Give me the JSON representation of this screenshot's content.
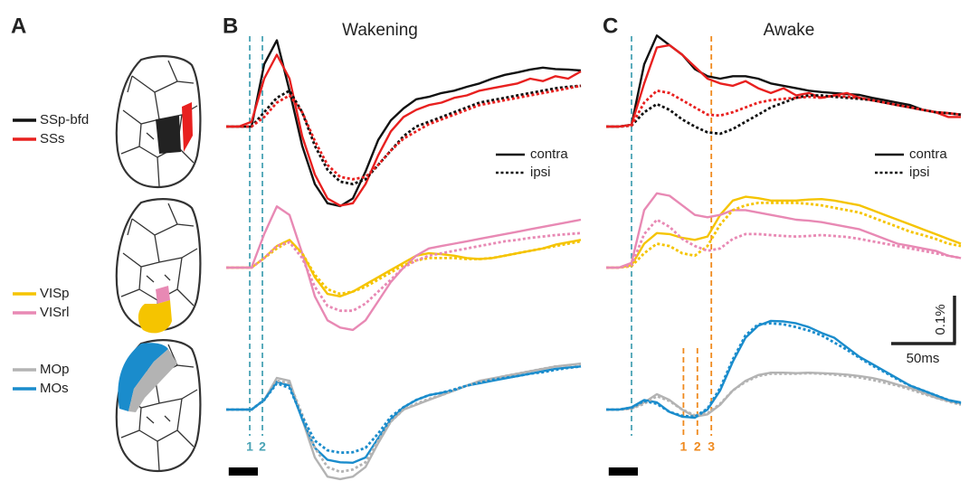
{
  "panel_labels": [
    "A",
    "B",
    "C"
  ],
  "chart_data": [
    {
      "type": "line",
      "title": "Wakening",
      "line_styles": [
        "contra",
        "ipsi"
      ],
      "x": [
        0,
        10,
        20,
        30,
        40,
        50,
        60,
        70,
        80,
        90,
        100,
        110,
        120,
        130,
        140,
        150,
        160,
        170,
        180,
        190,
        200,
        210,
        220,
        230,
        240,
        250,
        260,
        270,
        280
      ],
      "stimulus": [
        2,
        25
      ],
      "markers": [
        {
          "value": 18.6,
          "label": "1",
          "color": "#4aa3b5"
        },
        {
          "value": 28.6,
          "label": "2",
          "color": "#4aa3b5"
        }
      ],
      "series": [
        {
          "name": "SSp-bfd",
          "color": "#111111",
          "line": "contra",
          "values": [
            0,
            0,
            0,
            0.13,
            0.18,
            0.075,
            -0.04,
            -0.12,
            -0.16,
            -0.166,
            -0.15,
            -0.094,
            -0.028,
            0.013,
            0.038,
            0.057,
            0.062,
            0.07,
            0.075,
            0.083,
            0.09,
            0.1,
            0.108,
            0.113,
            0.119,
            0.123,
            0.12,
            0.119,
            0.117
          ]
        },
        {
          "name": "SSs",
          "color": "#e8201f",
          "line": "contra",
          "values": [
            0,
            0,
            0.01,
            0.1,
            0.15,
            0.1,
            -0.02,
            -0.1,
            -0.15,
            -0.165,
            -0.16,
            -0.12,
            -0.06,
            -0.01,
            0.02,
            0.035,
            0.045,
            0.05,
            0.06,
            0.065,
            0.075,
            0.08,
            0.085,
            0.09,
            0.1,
            0.095,
            0.105,
            0.1,
            0.115
          ]
        },
        {
          "name": "SSp-bfd",
          "color": "#111111",
          "line": "ipsi",
          "values": [
            0,
            0,
            0,
            0.03,
            0.06,
            0.075,
            0.03,
            -0.04,
            -0.09,
            -0.115,
            -0.12,
            -0.11,
            -0.08,
            -0.05,
            -0.02,
            0,
            0.01,
            0.02,
            0.03,
            0.04,
            0.05,
            0.055,
            0.06,
            0.065,
            0.07,
            0.075,
            0.08,
            0.083,
            0.085
          ]
        },
        {
          "name": "SSs",
          "color": "#e8201f",
          "line": "ipsi",
          "values": [
            0,
            0,
            0,
            0.02,
            0.05,
            0.065,
            0.03,
            -0.03,
            -0.08,
            -0.105,
            -0.11,
            -0.105,
            -0.08,
            -0.05,
            -0.025,
            -0.01,
            0.005,
            0.015,
            0.025,
            0.035,
            0.045,
            0.05,
            0.055,
            0.06,
            0.065,
            0.07,
            0.075,
            0.08,
            0.085
          ]
        },
        {
          "name": "VISp",
          "color": "#f5c400",
          "line": "contra",
          "values": [
            0,
            0,
            0,
            0.02,
            0.045,
            0.058,
            0.03,
            -0.02,
            -0.055,
            -0.06,
            -0.05,
            -0.035,
            -0.02,
            -0.005,
            0.01,
            0.025,
            0.03,
            0.028,
            0.025,
            0.02,
            0.018,
            0.02,
            0.025,
            0.03,
            0.035,
            0.04,
            0.048,
            0.053,
            0.058
          ]
        },
        {
          "name": "VISrl",
          "color": "#e889b4",
          "line": "contra",
          "values": [
            0,
            0,
            0,
            0.07,
            0.128,
            0.11,
            0.03,
            -0.06,
            -0.11,
            -0.125,
            -0.13,
            -0.11,
            -0.07,
            -0.03,
            0,
            0.025,
            0.04,
            0.045,
            0.05,
            0.055,
            0.06,
            0.065,
            0.07,
            0.075,
            0.08,
            0.085,
            0.09,
            0.095,
            0.1
          ]
        },
        {
          "name": "VISp",
          "color": "#f5c400",
          "line": "ipsi",
          "values": [
            0,
            0,
            0,
            0.02,
            0.04,
            0.055,
            0.03,
            -0.015,
            -0.045,
            -0.055,
            -0.05,
            -0.04,
            -0.025,
            -0.01,
            0.005,
            0.015,
            0.02,
            0.02,
            0.02,
            0.018,
            0.018,
            0.02,
            0.025,
            0.03,
            0.035,
            0.04,
            0.045,
            0.05,
            0.055
          ]
        },
        {
          "name": "VISrl",
          "color": "#e889b4",
          "line": "ipsi",
          "values": [
            0,
            0,
            0,
            0.02,
            0.045,
            0.053,
            0.02,
            -0.04,
            -0.08,
            -0.09,
            -0.09,
            -0.075,
            -0.05,
            -0.025,
            0,
            0.015,
            0.025,
            0.03,
            0.035,
            0.04,
            0.045,
            0.05,
            0.055,
            0.058,
            0.062,
            0.065,
            0.068,
            0.07,
            0.072
          ]
        },
        {
          "name": "MOp",
          "color": "#b3b3b3",
          "line": "contra",
          "values": [
            0,
            0,
            0,
            0.02,
            0.066,
            0.06,
            -0.02,
            -0.1,
            -0.14,
            -0.145,
            -0.14,
            -0.12,
            -0.07,
            -0.025,
            0,
            0.01,
            0.02,
            0.03,
            0.04,
            0.05,
            0.06,
            0.065,
            0.07,
            0.075,
            0.08,
            0.085,
            0.09,
            0.093,
            0.096
          ]
        },
        {
          "name": "MOs",
          "color": "#1a8ccc",
          "line": "contra",
          "values": [
            0,
            0,
            0,
            0.02,
            0.058,
            0.05,
            -0.02,
            -0.08,
            -0.105,
            -0.11,
            -0.111,
            -0.1,
            -0.06,
            -0.02,
            0.005,
            0.02,
            0.03,
            0.035,
            0.04,
            0.05,
            0.055,
            0.06,
            0.065,
            0.07,
            0.075,
            0.08,
            0.085,
            0.088,
            0.09
          ]
        },
        {
          "name": "MOp",
          "color": "#b3b3b3",
          "line": "ipsi",
          "values": [
            0,
            0,
            0,
            0.02,
            0.06,
            0.055,
            -0.01,
            -0.08,
            -0.12,
            -0.13,
            -0.125,
            -0.11,
            -0.065,
            -0.025,
            0,
            0.012,
            0.022,
            0.03,
            0.04,
            0.05,
            0.058,
            0.064,
            0.07,
            0.075,
            0.08,
            0.085,
            0.09,
            0.092,
            0.095
          ]
        },
        {
          "name": "MOs",
          "color": "#1a8ccc",
          "line": "ipsi",
          "values": [
            0,
            0,
            0,
            0.02,
            0.055,
            0.045,
            -0.015,
            -0.065,
            -0.085,
            -0.09,
            -0.089,
            -0.08,
            -0.05,
            -0.015,
            0.005,
            0.02,
            0.03,
            0.035,
            0.042,
            0.05,
            0.056,
            0.062,
            0.066,
            0.07,
            0.075,
            0.078,
            0.083,
            0.087,
            0.09
          ]
        }
      ]
    },
    {
      "type": "line",
      "title": "Awake",
      "line_styles": [
        "contra",
        "ipsi"
      ],
      "x": [
        0,
        10,
        20,
        30,
        40,
        50,
        60,
        70,
        80,
        90,
        100,
        110,
        120,
        130,
        140,
        150,
        160,
        170,
        180,
        190,
        200,
        210,
        220,
        230,
        240,
        250,
        260,
        270,
        280
      ],
      "stimulus": [
        2,
        25
      ],
      "markers": [
        {
          "value": 20,
          "label": "",
          "color": "#4aa3b5"
        },
        {
          "value": 61,
          "label": "1",
          "color": "#ef8a1f"
        },
        {
          "value": 72,
          "label": "2",
          "color": "#ef8a1f"
        },
        {
          "value": 83,
          "label": "3",
          "color": "#ef8a1f"
        }
      ],
      "scale_bar": {
        "y": 0.1,
        "y_label": "0.1%",
        "x": 50,
        "x_label": "50ms"
      },
      "series": [
        {
          "name": "SSp-bfd",
          "color": "#111111",
          "line": "contra",
          "values": [
            0,
            0,
            0.004,
            0.13,
            0.19,
            0.17,
            0.15,
            0.12,
            0.105,
            0.1,
            0.105,
            0.105,
            0.1,
            0.09,
            0.085,
            0.08,
            0.075,
            0.072,
            0.07,
            0.068,
            0.066,
            0.06,
            0.055,
            0.05,
            0.045,
            0.035,
            0.03,
            0.028,
            0.025
          ]
        },
        {
          "name": "SSs",
          "color": "#e8201f",
          "line": "contra",
          "values": [
            0,
            0,
            0.004,
            0.09,
            0.165,
            0.17,
            0.15,
            0.125,
            0.1,
            0.09,
            0.085,
            0.095,
            0.08,
            0.07,
            0.08,
            0.065,
            0.07,
            0.06,
            0.065,
            0.07,
            0.06,
            0.055,
            0.05,
            0.045,
            0.04,
            0.035,
            0.03,
            0.02,
            0.02
          ]
        },
        {
          "name": "SSp-bfd",
          "color": "#111111",
          "line": "ipsi",
          "values": [
            0,
            0,
            0.002,
            0.03,
            0.047,
            0.035,
            0.015,
            0,
            -0.012,
            -0.015,
            -0.005,
            0.01,
            0.025,
            0.04,
            0.05,
            0.06,
            0.065,
            0.065,
            0.062,
            0.06,
            0.058,
            0.055,
            0.05,
            0.045,
            0.04,
            0.035,
            0.03,
            0.028,
            0.025
          ]
        },
        {
          "name": "SSs",
          "color": "#e8201f",
          "line": "ipsi",
          "values": [
            0,
            0,
            0.002,
            0.05,
            0.075,
            0.07,
            0.055,
            0.04,
            0.025,
            0.023,
            0.03,
            0.04,
            0.05,
            0.055,
            0.058,
            0.06,
            0.062,
            0.06,
            0.065,
            0.062,
            0.06,
            0.055,
            0.05,
            0.045,
            0.04,
            0.035,
            0.03,
            0.028,
            0.025
          ]
        },
        {
          "name": "VISp",
          "color": "#f5c400",
          "line": "contra",
          "values": [
            0,
            0,
            0.005,
            0.05,
            0.072,
            0.07,
            0.062,
            0.058,
            0.065,
            0.11,
            0.14,
            0.148,
            0.145,
            0.14,
            0.14,
            0.14,
            0.142,
            0.143,
            0.14,
            0.135,
            0.13,
            0.12,
            0.11,
            0.1,
            0.09,
            0.08,
            0.07,
            0.06,
            0.05
          ]
        },
        {
          "name": "VISrl",
          "color": "#e889b4",
          "line": "contra",
          "values": [
            0,
            0,
            0.01,
            0.12,
            0.155,
            0.15,
            0.13,
            0.11,
            0.105,
            0.11,
            0.12,
            0.12,
            0.115,
            0.11,
            0.105,
            0.1,
            0.098,
            0.095,
            0.09,
            0.085,
            0.08,
            0.07,
            0.06,
            0.05,
            0.045,
            0.04,
            0.035,
            0.025,
            0.02
          ]
        },
        {
          "name": "VISp",
          "color": "#f5c400",
          "line": "ipsi",
          "values": [
            0,
            0,
            0.003,
            0.03,
            0.05,
            0.045,
            0.03,
            0.025,
            0.045,
            0.09,
            0.12,
            0.13,
            0.135,
            0.135,
            0.135,
            0.135,
            0.133,
            0.13,
            0.125,
            0.12,
            0.115,
            0.105,
            0.095,
            0.085,
            0.075,
            0.068,
            0.06,
            0.05,
            0.045
          ]
        },
        {
          "name": "VISrl",
          "color": "#e889b4",
          "line": "ipsi",
          "values": [
            0,
            0,
            0.005,
            0.07,
            0.1,
            0.085,
            0.06,
            0.045,
            0.035,
            0.04,
            0.06,
            0.07,
            0.07,
            0.068,
            0.066,
            0.065,
            0.066,
            0.068,
            0.066,
            0.064,
            0.06,
            0.055,
            0.05,
            0.045,
            0.04,
            0.035,
            0.03,
            0.025,
            0.02
          ]
        },
        {
          "name": "MOp",
          "color": "#b3b3b3",
          "line": "contra",
          "values": [
            0,
            0,
            0.002,
            0.015,
            0.032,
            0.02,
            0,
            -0.015,
            -0.01,
            0.01,
            0.04,
            0.06,
            0.072,
            0.077,
            0.077,
            0.076,
            0.077,
            0.076,
            0.075,
            0.073,
            0.07,
            0.066,
            0.06,
            0.052,
            0.045,
            0.035,
            0.025,
            0.018,
            0.012
          ]
        },
        {
          "name": "MOs",
          "color": "#1a8ccc",
          "line": "contra",
          "values": [
            0,
            0,
            0.005,
            0.02,
            0.015,
            -0.005,
            -0.015,
            -0.017,
            0,
            0.04,
            0.1,
            0.15,
            0.175,
            0.185,
            0.184,
            0.18,
            0.172,
            0.16,
            0.15,
            0.13,
            0.11,
            0.095,
            0.08,
            0.065,
            0.05,
            0.04,
            0.03,
            0.02,
            0.015
          ]
        },
        {
          "name": "MOp",
          "color": "#b3b3b3",
          "line": "ipsi",
          "values": [
            0,
            0,
            0.002,
            0.012,
            0.028,
            0.018,
            0,
            -0.012,
            -0.008,
            0.012,
            0.04,
            0.058,
            0.07,
            0.075,
            0.075,
            0.075,
            0.076,
            0.075,
            0.073,
            0.07,
            0.067,
            0.062,
            0.056,
            0.05,
            0.042,
            0.033,
            0.025,
            0.017,
            0.01
          ]
        },
        {
          "name": "MOs",
          "color": "#1a8ccc",
          "line": "ipsi",
          "values": [
            0,
            0,
            0.004,
            0.018,
            0.012,
            -0.005,
            -0.013,
            -0.015,
            0.002,
            0.045,
            0.105,
            0.155,
            0.178,
            0.18,
            0.178,
            0.172,
            0.165,
            0.155,
            0.14,
            0.125,
            0.108,
            0.092,
            0.078,
            0.063,
            0.05,
            0.04,
            0.03,
            0.02,
            0.013
          ]
        }
      ]
    }
  ]
}
